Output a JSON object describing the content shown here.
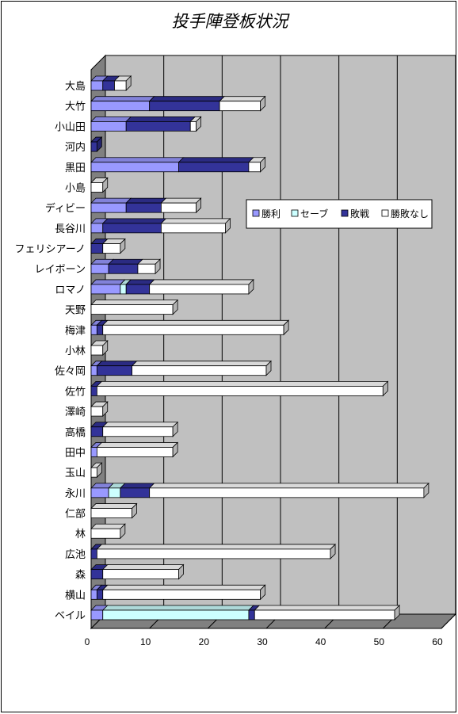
{
  "chart_data": {
    "type": "bar",
    "orientation": "horizontal",
    "stacked": true,
    "title": "投手陣登板状況",
    "categories": [
      "大島",
      "大竹",
      "小山田",
      "河内",
      "黒田",
      "小島",
      "ディビー",
      "長谷川",
      "フェリシアーノ",
      "レイボーン",
      "ロマノ",
      "天野",
      "梅津",
      "小林",
      "佐々岡",
      "佐竹",
      "澤崎",
      "高橋",
      "田中",
      "玉山",
      "永川",
      "仁部",
      "林",
      "広池",
      "森",
      "横山",
      "ベイル"
    ],
    "series": [
      {
        "name": "勝利",
        "color": "#9999ff",
        "values": [
          2,
          10,
          6,
          0,
          15,
          0,
          6,
          2,
          0,
          3,
          5,
          0,
          1,
          0,
          1,
          0,
          0,
          0,
          1,
          0,
          3,
          0,
          0,
          0,
          0,
          1,
          2
        ]
      },
      {
        "name": "セーブ",
        "color": "#ccffff",
        "values": [
          0,
          0,
          0,
          0,
          0,
          0,
          0,
          0,
          0,
          0,
          1,
          0,
          0,
          0,
          0,
          0,
          0,
          0,
          0,
          0,
          2,
          0,
          0,
          0,
          0,
          0,
          25
        ]
      },
      {
        "name": "敗戦",
        "color": "#333399",
        "values": [
          2,
          12,
          11,
          1,
          12,
          0,
          6,
          10,
          2,
          5,
          4,
          0,
          1,
          0,
          6,
          1,
          0,
          2,
          0,
          0,
          5,
          0,
          0,
          1,
          2,
          1,
          1
        ]
      },
      {
        "name": "勝敗なし",
        "color": "#ffffff",
        "values": [
          2,
          7,
          1,
          0,
          2,
          2,
          6,
          11,
          3,
          3,
          17,
          14,
          31,
          2,
          23,
          49,
          2,
          12,
          13,
          1,
          47,
          7,
          5,
          40,
          13,
          27,
          24
        ]
      }
    ],
    "xlim": [
      0,
      60
    ],
    "xticks": [
      0,
      10,
      20,
      30,
      40,
      50,
      60
    ],
    "grid": true,
    "legend_position": "right"
  },
  "colors": {
    "plot_back": "#c0c0c0",
    "wall": "#808080",
    "grid": "#000000"
  }
}
